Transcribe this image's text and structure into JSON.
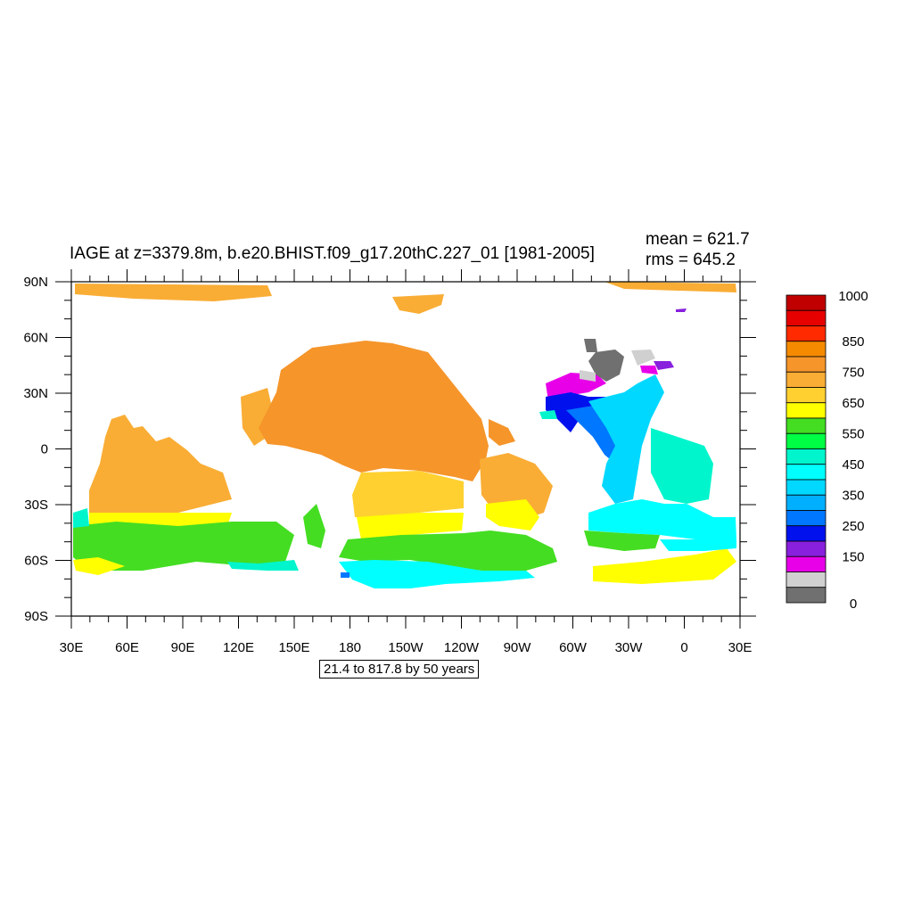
{
  "title": "IAGE at z=3379.8m, b.e20.BHIST.f09_g17.20thC.227_01 [1981-2005]",
  "stats": {
    "mean": "mean = 621.7",
    "rms": "rms = 645.2"
  },
  "contour_info": "21.4 to 817.8 by 50 years",
  "lat_labels": [
    "90N",
    "60N",
    "30N",
    "0",
    "30S",
    "60S",
    "90S"
  ],
  "lon_labels": [
    "30E",
    "60E",
    "90E",
    "120E",
    "150E",
    "180",
    "150W",
    "120W",
    "90W",
    "60W",
    "30W",
    "0",
    "30E"
  ],
  "colorbar": {
    "labels": [
      "1000",
      "850",
      "750",
      "650",
      "550",
      "450",
      "350",
      "250",
      "150",
      "0"
    ],
    "colors": [
      "#c00000",
      "#e60000",
      "#ff2a00",
      "#f58a00",
      "#f5952a",
      "#f9ad35",
      "#ffd030",
      "#ffff00",
      "#44dd22",
      "#00ff44",
      "#00f5cc",
      "#00ffff",
      "#00d8ff",
      "#00b0ff",
      "#0077ff",
      "#0011ee",
      "#8820dd",
      "#e800e8",
      "#d0d0d0",
      "#707070"
    ]
  },
  "field_colors": {
    "age_800": "#f5952a",
    "age_700": "#f9ad35",
    "age_650": "#ffd030",
    "age_600": "#ffff00",
    "age_550": "#44dd22",
    "age_500": "#00ff44",
    "age_450": "#00f5cc",
    "age_400": "#00ffff",
    "age_350": "#00d8ff",
    "age_300": "#00b0ff",
    "age_250": "#0077ff",
    "age_200": "#0011ee",
    "age_150": "#8820dd",
    "age_100": "#e800e8",
    "age_50": "#d0d0d0",
    "age_0": "#707070"
  }
}
